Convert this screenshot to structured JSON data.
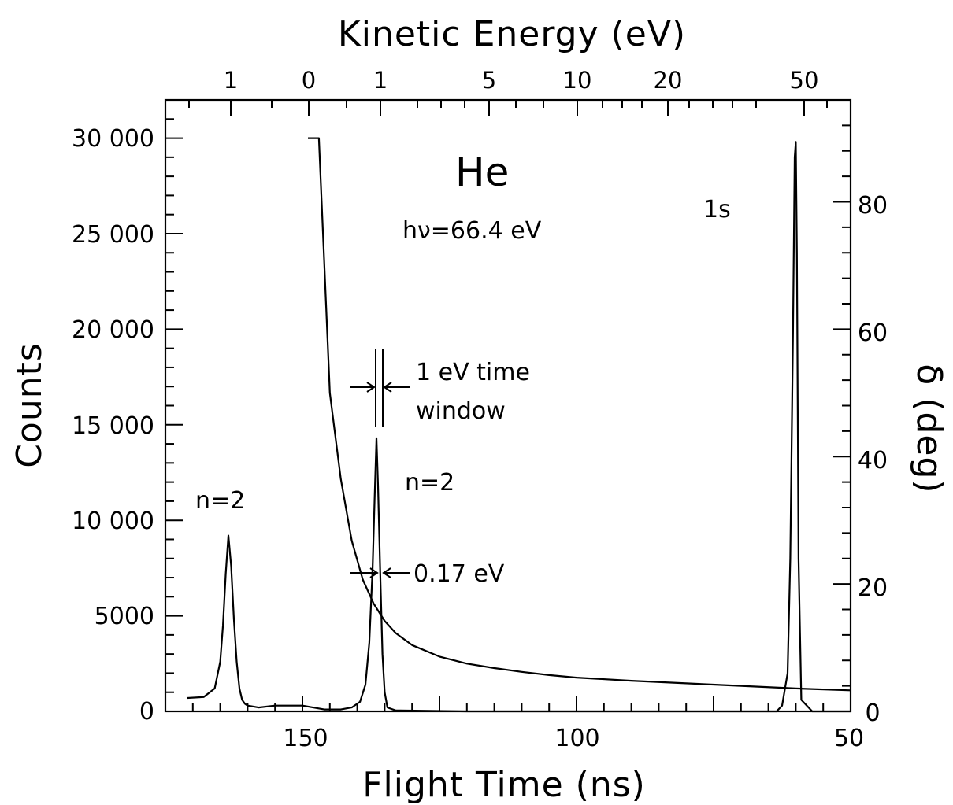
{
  "chart_data": {
    "type": "line",
    "element": "He",
    "photon_energy": "hν=66.4 eV",
    "axes": {
      "bottom": {
        "label": "Flight Time (ns)",
        "range": [
          175,
          50
        ],
        "ticks": [
          150,
          100,
          50
        ],
        "tick_labels": [
          "150",
          "100",
          "50"
        ]
      },
      "left": {
        "label": "Counts",
        "range": [
          0,
          32000
        ],
        "ticks": [
          0,
          5000,
          10000,
          15000,
          20000,
          25000,
          30000
        ],
        "tick_labels": [
          "0",
          "5000",
          "10 000",
          "15 000",
          "20 000",
          "25 000",
          "30 000"
        ]
      },
      "right": {
        "label": "δ (deg)",
        "range": [
          0,
          96
        ],
        "ticks": [
          0,
          20,
          40,
          60,
          80
        ],
        "tick_labels": [
          "0",
          "20",
          "40",
          "60",
          "80"
        ]
      },
      "top": {
        "label": "Kinetic Energy (eV)",
        "tick_labels": [
          "1",
          "0",
          "1",
          "5",
          "10",
          "20",
          "50"
        ]
      }
    },
    "series": [
      {
        "name": "Counts",
        "axis": "left",
        "x": [
          171,
          168,
          166,
          165,
          164.5,
          164,
          163.5,
          163,
          162.5,
          162,
          161.5,
          161,
          160.5,
          160,
          158,
          155,
          150,
          146,
          143,
          141,
          139.5,
          138.5,
          137.8,
          137.2,
          136.8,
          136.5,
          136.2,
          135.8,
          135.4,
          135,
          134.5,
          133,
          120,
          70,
          63.5,
          62.5,
          61.5,
          61,
          60.5,
          60.2,
          60,
          59.8,
          59.5,
          59,
          57,
          50
        ],
        "y": [
          700,
          750,
          1200,
          2600,
          4500,
          7200,
          9200,
          7600,
          4800,
          2600,
          1200,
          600,
          400,
          300,
          200,
          300,
          300,
          100,
          100,
          200,
          500,
          1400,
          3600,
          7500,
          11500,
          14300,
          11800,
          7200,
          3000,
          1000,
          200,
          50,
          0,
          0,
          0,
          300,
          2000,
          8000,
          20000,
          29000,
          29800,
          24000,
          8000,
          600,
          0,
          0
        ]
      },
      {
        "name": "δ",
        "axis": "right",
        "x": [
          149,
          147,
          145,
          143,
          141,
          139,
          137,
          135,
          133,
          130,
          125,
          120,
          115,
          110,
          105,
          100,
          90,
          80,
          70,
          60,
          50
        ],
        "y": [
          90,
          90,
          50,
          36.5,
          26.8,
          20.7,
          16.9,
          14.2,
          12.3,
          10.4,
          8.6,
          7.5,
          6.8,
          6.2,
          5.7,
          5.3,
          4.8,
          4.4,
          4.0,
          3.6,
          3.3
        ]
      }
    ],
    "annotations": [
      "He",
      "hν=66.4 eV",
      "1s",
      "n=2",
      "n=2",
      "1 eV time",
      "window",
      "0.17 eV"
    ]
  }
}
